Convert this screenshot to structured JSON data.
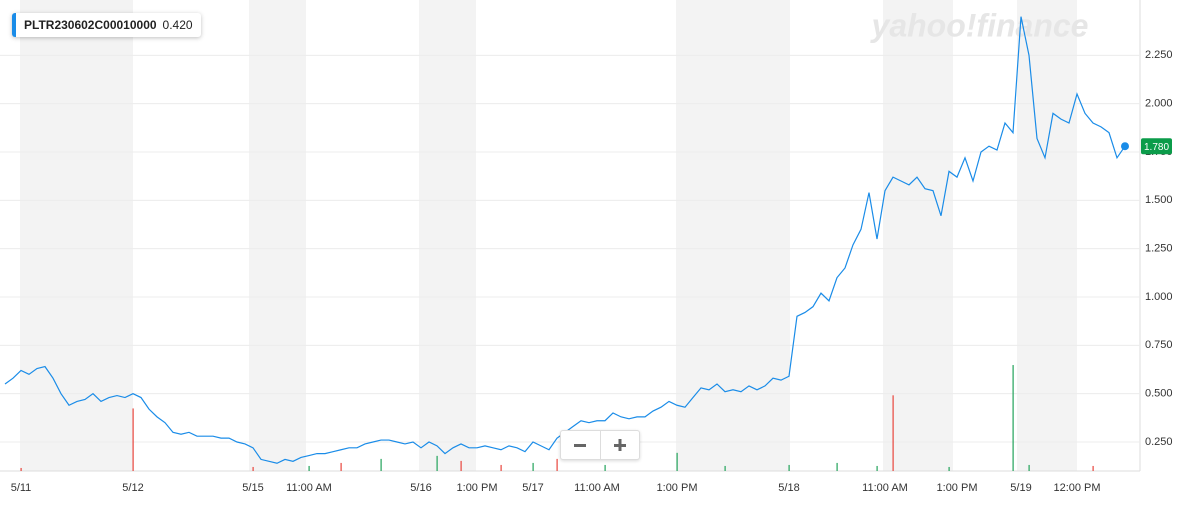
{
  "chart_data": {
    "type": "line",
    "watermark": "yahoo!finance",
    "grid": true,
    "categories": [
      null,
      null,
      "5/11",
      null,
      null,
      null,
      null,
      null,
      null,
      null,
      null,
      null,
      null,
      null,
      null,
      null,
      "5/12",
      null,
      null,
      null,
      null,
      null,
      null,
      null,
      null,
      null,
      null,
      null,
      null,
      null,
      null,
      "5/15",
      null,
      null,
      null,
      null,
      null,
      null,
      "11:00 AM",
      null,
      null,
      null,
      null,
      null,
      null,
      null,
      null,
      null,
      null,
      null,
      null,
      null,
      "5/16",
      null,
      null,
      null,
      null,
      null,
      null,
      "1:00 PM",
      null,
      null,
      null,
      null,
      null,
      null,
      "5/17",
      null,
      null,
      null,
      null,
      null,
      null,
      null,
      "11:00 AM",
      null,
      null,
      null,
      null,
      null,
      null,
      null,
      null,
      null,
      "1:00 PM",
      null,
      null,
      null,
      null,
      null,
      null,
      null,
      null,
      null,
      null,
      null,
      null,
      null,
      "5/18",
      null,
      null,
      null,
      null,
      null,
      null,
      null,
      null,
      null,
      null,
      null,
      "11:00 AM",
      null,
      null,
      null,
      null,
      null,
      null,
      null,
      null,
      "1:00 PM",
      null,
      null,
      null,
      null,
      null,
      null,
      null,
      "5/19",
      null,
      null,
      null,
      null,
      null,
      null,
      "12:00 PM",
      null,
      null,
      null,
      null,
      null,
      null
    ],
    "series": [
      {
        "name": "PLTR230602C00010000",
        "color": "#1a8ce8",
        "values": [
          0.55,
          0.58,
          0.62,
          0.6,
          0.63,
          0.64,
          0.58,
          0.5,
          0.44,
          0.46,
          0.47,
          0.5,
          0.46,
          0.48,
          0.49,
          0.48,
          0.5,
          0.48,
          0.42,
          0.38,
          0.35,
          0.3,
          0.29,
          0.3,
          0.28,
          0.28,
          0.28,
          0.27,
          0.27,
          0.25,
          0.24,
          0.22,
          0.16,
          0.15,
          0.14,
          0.16,
          0.15,
          0.17,
          0.18,
          0.19,
          0.19,
          0.2,
          0.21,
          0.22,
          0.22,
          0.24,
          0.25,
          0.26,
          0.26,
          0.25,
          0.24,
          0.25,
          0.22,
          0.25,
          0.23,
          0.19,
          0.22,
          0.24,
          0.22,
          0.22,
          0.23,
          0.22,
          0.21,
          0.23,
          0.22,
          0.2,
          0.25,
          0.23,
          0.21,
          0.27,
          0.3,
          0.33,
          0.36,
          0.35,
          0.36,
          0.36,
          0.4,
          0.38,
          0.37,
          0.38,
          0.38,
          0.41,
          0.43,
          0.46,
          0.44,
          0.43,
          0.48,
          0.53,
          0.52,
          0.55,
          0.51,
          0.52,
          0.51,
          0.54,
          0.52,
          0.54,
          0.58,
          0.57,
          0.59,
          0.9,
          0.92,
          0.95,
          1.02,
          0.98,
          1.1,
          1.15,
          1.27,
          1.35,
          1.54,
          1.3,
          1.55,
          1.62,
          1.6,
          1.58,
          1.62,
          1.56,
          1.55,
          1.42,
          1.65,
          1.62,
          1.72,
          1.6,
          1.75,
          1.78,
          1.76,
          1.9,
          1.85,
          2.45,
          2.25,
          1.82,
          1.72,
          1.95,
          1.92,
          1.9,
          2.05,
          1.95,
          1.9,
          1.88,
          1.85,
          1.72,
          1.78
        ]
      }
    ],
    "legend_value": {
      "value": 0.42,
      "label": "0.420"
    },
    "last_value": {
      "value": 1.78,
      "label": "1.780",
      "color": "#0b9c4a"
    },
    "ylim": [
      0.1,
      2.5
    ],
    "yticks": [
      {
        "value": 0.25,
        "label": "0.250"
      },
      {
        "value": 0.5,
        "label": "0.500"
      },
      {
        "value": 0.75,
        "label": "0.750"
      },
      {
        "value": 1,
        "label": "1.000"
      },
      {
        "value": 1.25,
        "label": "1.250"
      },
      {
        "value": 1.5,
        "label": "1.500"
      },
      {
        "value": 1.75,
        "label": "1.750"
      },
      {
        "value": 2,
        "label": "2.000"
      },
      {
        "value": 2.25,
        "label": "2.250"
      }
    ],
    "y2lim": [
      0,
      110
    ],
    "volume_down": {
      "color": "#e8453c",
      "values": [
        null,
        null,
        3,
        null,
        null,
        null,
        null,
        null,
        null,
        null,
        null,
        null,
        null,
        null,
        null,
        null,
        62,
        null,
        null,
        null,
        null,
        null,
        null,
        null,
        null,
        null,
        null,
        null,
        null,
        null,
        null,
        4,
        null,
        null,
        null,
        null,
        null,
        null,
        null,
        null,
        null,
        null,
        8,
        null,
        null,
        null,
        null,
        null,
        null,
        null,
        null,
        null,
        null,
        null,
        null,
        null,
        null,
        10,
        null,
        null,
        null,
        null,
        6,
        null,
        null,
        null,
        null,
        null,
        null,
        12,
        null,
        null,
        null,
        null,
        null,
        null,
        null,
        null,
        null,
        null,
        null,
        null,
        null,
        null,
        null,
        null,
        null,
        null,
        null,
        null,
        null,
        null,
        null,
        null,
        null,
        null,
        null,
        null,
        null,
        null,
        null,
        null,
        null,
        null,
        null,
        null,
        null,
        null,
        null,
        null,
        null,
        75,
        null,
        null,
        null,
        null,
        null,
        null,
        null,
        null,
        null,
        null,
        null,
        null,
        null,
        null,
        null,
        null,
        null,
        null,
        null,
        null,
        null,
        null,
        null,
        null,
        5,
        null,
        null,
        null,
        null
      ]
    },
    "volume_up": {
      "color": "#21a35a",
      "values": [
        null,
        null,
        null,
        null,
        null,
        null,
        null,
        null,
        null,
        null,
        null,
        null,
        null,
        null,
        null,
        null,
        null,
        null,
        null,
        null,
        null,
        null,
        null,
        null,
        null,
        null,
        null,
        null,
        null,
        null,
        null,
        null,
        null,
        null,
        null,
        null,
        null,
        null,
        5,
        null,
        null,
        null,
        null,
        null,
        null,
        null,
        null,
        12,
        null,
        null,
        null,
        null,
        null,
        null,
        15,
        null,
        null,
        null,
        null,
        null,
        null,
        null,
        null,
        null,
        null,
        null,
        8,
        null,
        null,
        null,
        null,
        null,
        null,
        null,
        null,
        6,
        null,
        null,
        null,
        null,
        null,
        null,
        null,
        null,
        18,
        null,
        null,
        null,
        null,
        null,
        5,
        null,
        null,
        null,
        null,
        null,
        null,
        null,
        6,
        null,
        null,
        null,
        null,
        null,
        8,
        null,
        null,
        null,
        null,
        5,
        null,
        null,
        null,
        null,
        null,
        null,
        null,
        null,
        4,
        null,
        null,
        null,
        null,
        null,
        null,
        null,
        105,
        null,
        6,
        null,
        null,
        null,
        null,
        null,
        null,
        null,
        null,
        null,
        null,
        null,
        null
      ]
    }
  }
}
